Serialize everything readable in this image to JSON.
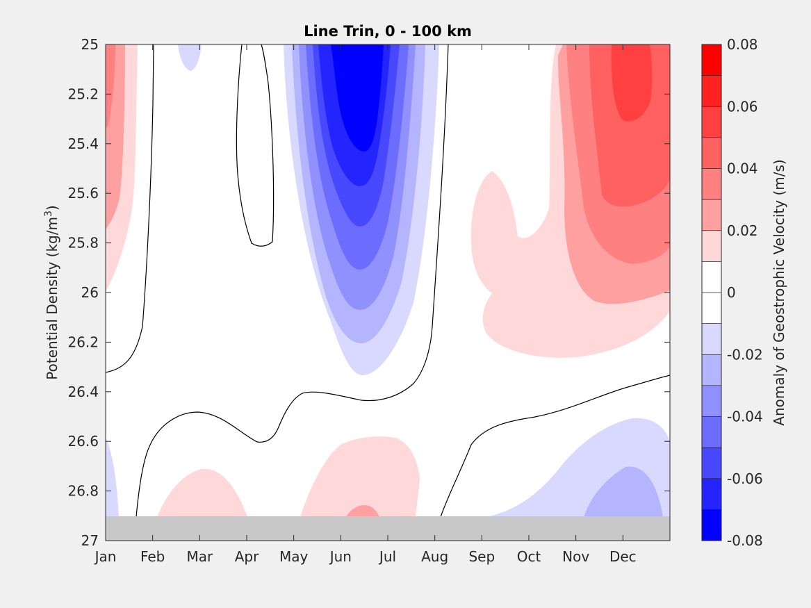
{
  "chart_data": {
    "type": "heatmap",
    "subtype": "filled-contour",
    "title": "Line Trin, 0 - 100 km",
    "ylabel": "Potential Density (kg/m³)",
    "ylabel_main": "Potential Density (kg/m",
    "ylabel_sup": "3",
    "ylabel_end": ")",
    "x_categories": [
      "Jan",
      "Feb",
      "Mar",
      "Apr",
      "May",
      "Jun",
      "Jul",
      "Aug",
      "Sep",
      "Oct",
      "Nov",
      "Dec"
    ],
    "y_ticks": [
      "25",
      "25.2",
      "25.4",
      "25.6",
      "25.8",
      "26",
      "26.2",
      "26.4",
      "26.6",
      "26.8",
      "27"
    ],
    "ylim": [
      25,
      27
    ],
    "y_reversed": true,
    "masked_below_density": 26.9,
    "mask_color": "#c8c8c8",
    "zero_contour_line_color": "#000000",
    "colorbar": {
      "label": "Anomaly of Geostrophic Velocity (m/s)",
      "range": [
        -0.08,
        0.08
      ],
      "step": 0.01,
      "tick_labels": [
        "0.08",
        "0.06",
        "0.04",
        "0.02",
        "0",
        "-0.02",
        "-0.04",
        "-0.06",
        "-0.08"
      ],
      "levels_top_to_bottom": [
        {
          "range": [
            0.07,
            0.08
          ],
          "color": "#ff0000"
        },
        {
          "range": [
            0.06,
            0.07
          ],
          "color": "#ff2020"
        },
        {
          "range": [
            0.05,
            0.06
          ],
          "color": "#ff4040"
        },
        {
          "range": [
            0.04,
            0.05
          ],
          "color": "#ff6060"
        },
        {
          "range": [
            0.03,
            0.04
          ],
          "color": "#ff8080"
        },
        {
          "range": [
            0.02,
            0.03
          ],
          "color": "#ffa0a0"
        },
        {
          "range": [
            0.01,
            0.02
          ],
          "color": "#ffd9d9"
        },
        {
          "range": [
            0.0,
            0.01
          ],
          "color": "#ffffff"
        },
        {
          "range": [
            -0.01,
            0.0
          ],
          "color": "#ffffff"
        },
        {
          "range": [
            -0.02,
            -0.01
          ],
          "color": "#d9d9ff"
        },
        {
          "range": [
            -0.03,
            -0.02
          ],
          "color": "#b4b4ff"
        },
        {
          "range": [
            -0.04,
            -0.03
          ],
          "color": "#9090ff"
        },
        {
          "range": [
            -0.05,
            -0.04
          ],
          "color": "#6c6cff"
        },
        {
          "range": [
            -0.06,
            -0.05
          ],
          "color": "#4848ff"
        },
        {
          "range": [
            -0.07,
            -0.06
          ],
          "color": "#2424ff"
        },
        {
          "range": [
            -0.08,
            -0.07
          ],
          "color": "#0000ff"
        }
      ]
    },
    "features": [
      {
        "name": "summer negative anomaly",
        "months": "May-Aug",
        "density_range": [
          25,
          26.35
        ],
        "min_value": -0.07,
        "core": "Jun-Jul, 25.0-25.6"
      },
      {
        "name": "late-year positive anomaly",
        "months": "Oct-Dec",
        "density_range": [
          25,
          26.25
        ],
        "max_value": 0.06,
        "core": "Dec, 25.0-25.3"
      },
      {
        "name": "early January positive anomaly",
        "months": "Jan",
        "density_range": [
          25,
          26.0
        ],
        "max_value": 0.03
      },
      {
        "name": "deep positive anomaly",
        "months": "Jun-Jul",
        "density_range": [
          26.6,
          26.9
        ],
        "max_value": 0.02
      },
      {
        "name": "deep positive anomaly",
        "months": "Feb-Apr",
        "density_range": [
          26.7,
          26.9
        ],
        "max_value": 0.01
      },
      {
        "name": "deep negative anomaly",
        "months": "Oct-Dec",
        "density_range": [
          26.55,
          26.9
        ],
        "min_value": -0.03
      }
    ]
  }
}
